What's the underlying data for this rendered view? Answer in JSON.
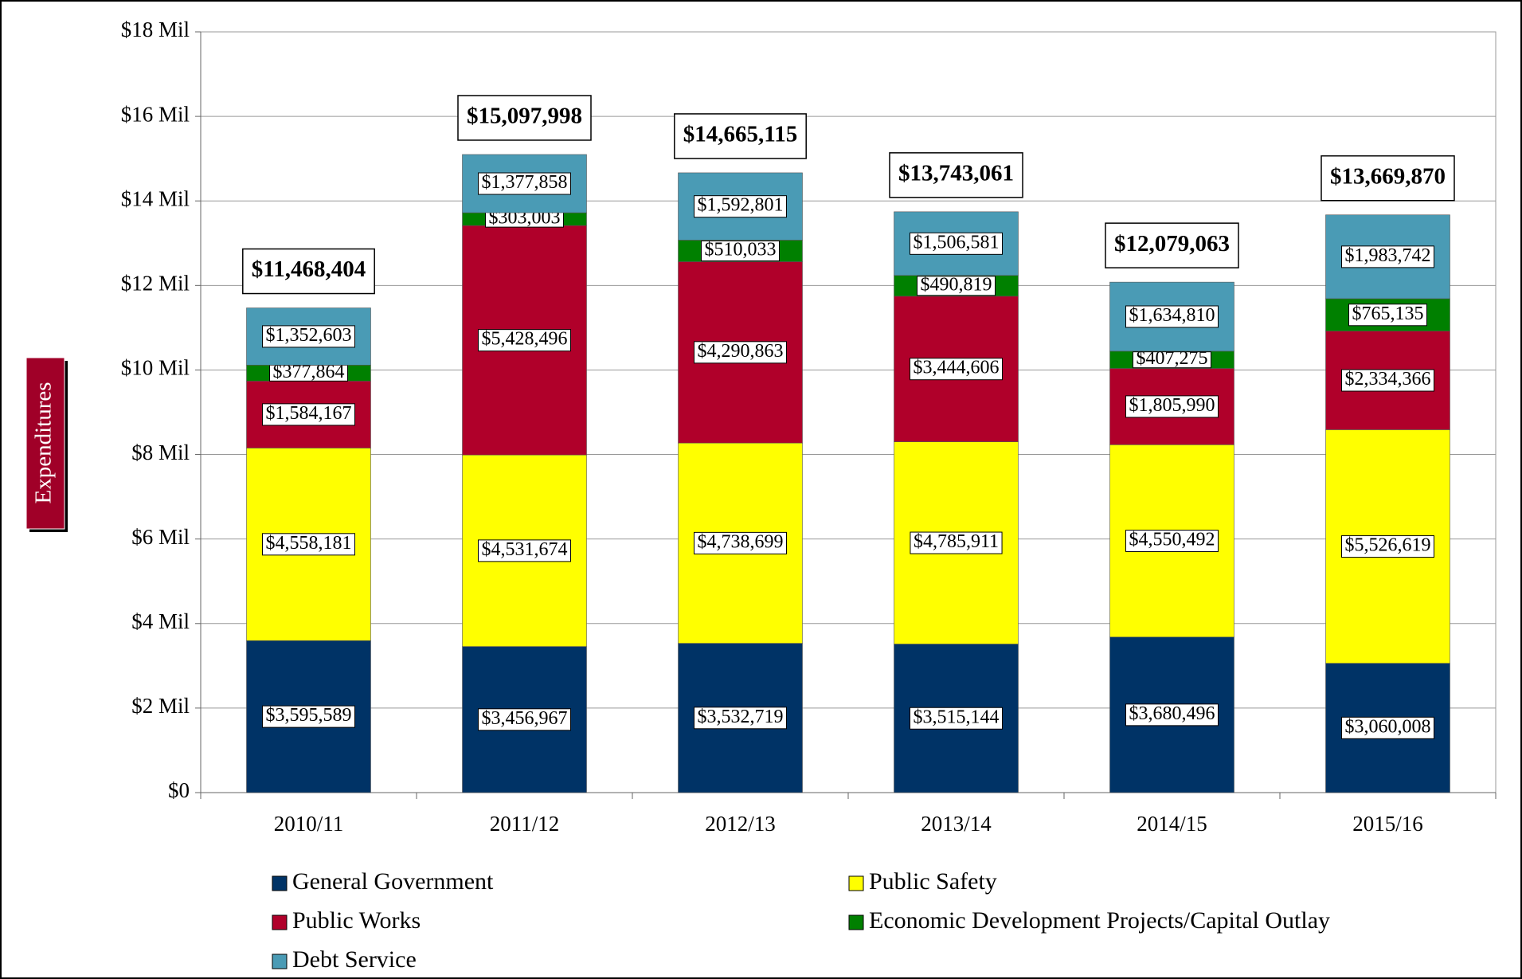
{
  "chart_data": {
    "type": "stacked_bar",
    "y_label": "Expenditures",
    "categories": [
      "2010/11",
      "2011/12",
      "2012/13",
      "2013/14",
      "2014/15",
      "2015/16"
    ],
    "series": [
      {
        "name": "General Government",
        "color": "#003366",
        "values": [
          3595589,
          3456967,
          3532719,
          3515144,
          3680496,
          3060008
        ],
        "value_labels": [
          "$3,595,589",
          "$3,456,967",
          "$3,532,719",
          "$3,515,144",
          "$3,680,496",
          "$3,060,008"
        ]
      },
      {
        "name": "Public Safety",
        "color": "#ffff00",
        "values": [
          4558181,
          4531674,
          4738699,
          4785911,
          4550492,
          5526619
        ],
        "value_labels": [
          "$4,558,181",
          "$4,531,674",
          "$4,738,699",
          "$4,785,911",
          "$4,550,492",
          "$5,526,619"
        ]
      },
      {
        "name": "Public Works",
        "color": "#b0002a",
        "values": [
          1584167,
          5428496,
          4290863,
          3444606,
          1805990,
          2334366
        ],
        "value_labels": [
          "$1,584,167",
          "$5,428,496",
          "$4,290,863",
          "$3,444,606",
          "$1,805,990",
          "$2,334,366"
        ]
      },
      {
        "name": "Economic Development Projects/Capital Outlay",
        "color": "#008000",
        "values": [
          377864,
          303003,
          510033,
          490819,
          407275,
          765135
        ],
        "value_labels": [
          "$377,864",
          "$303,003",
          "$510,033",
          "$490,819",
          "$407,275",
          "$765,135"
        ]
      },
      {
        "name": "Debt Service",
        "color": "#4a9bb5",
        "values": [
          1352603,
          1377858,
          1592801,
          1506581,
          1634810,
          1983742
        ],
        "value_labels": [
          "$1,352,603",
          "$1,377,858",
          "$1,592,801",
          "$1,506,581",
          "$1,634,810",
          "$1,983,742"
        ]
      }
    ],
    "totals": [
      11468404,
      15097998,
      14665115,
      13743061,
      12079063,
      13669870
    ],
    "total_labels": [
      "$11,468,404",
      "$15,097,998",
      "$14,665,115",
      "$13,743,061",
      "$12,079,063",
      "$13,669,870"
    ],
    "ylim": [
      0,
      18000000
    ],
    "yticks": [
      {
        "value": 0,
        "label": "$0"
      },
      {
        "value": 2000000,
        "label": "$2 Mil"
      },
      {
        "value": 4000000,
        "label": "$4 Mil"
      },
      {
        "value": 6000000,
        "label": "$6 Mil"
      },
      {
        "value": 8000000,
        "label": "$8 Mil"
      },
      {
        "value": 10000000,
        "label": "$10 Mil"
      },
      {
        "value": 12000000,
        "label": "$12 Mil"
      },
      {
        "value": 14000000,
        "label": "$14 Mil"
      },
      {
        "value": 16000000,
        "label": "$16 Mil"
      },
      {
        "value": 18000000,
        "label": "$18 Mil"
      }
    ],
    "grid": true
  }
}
